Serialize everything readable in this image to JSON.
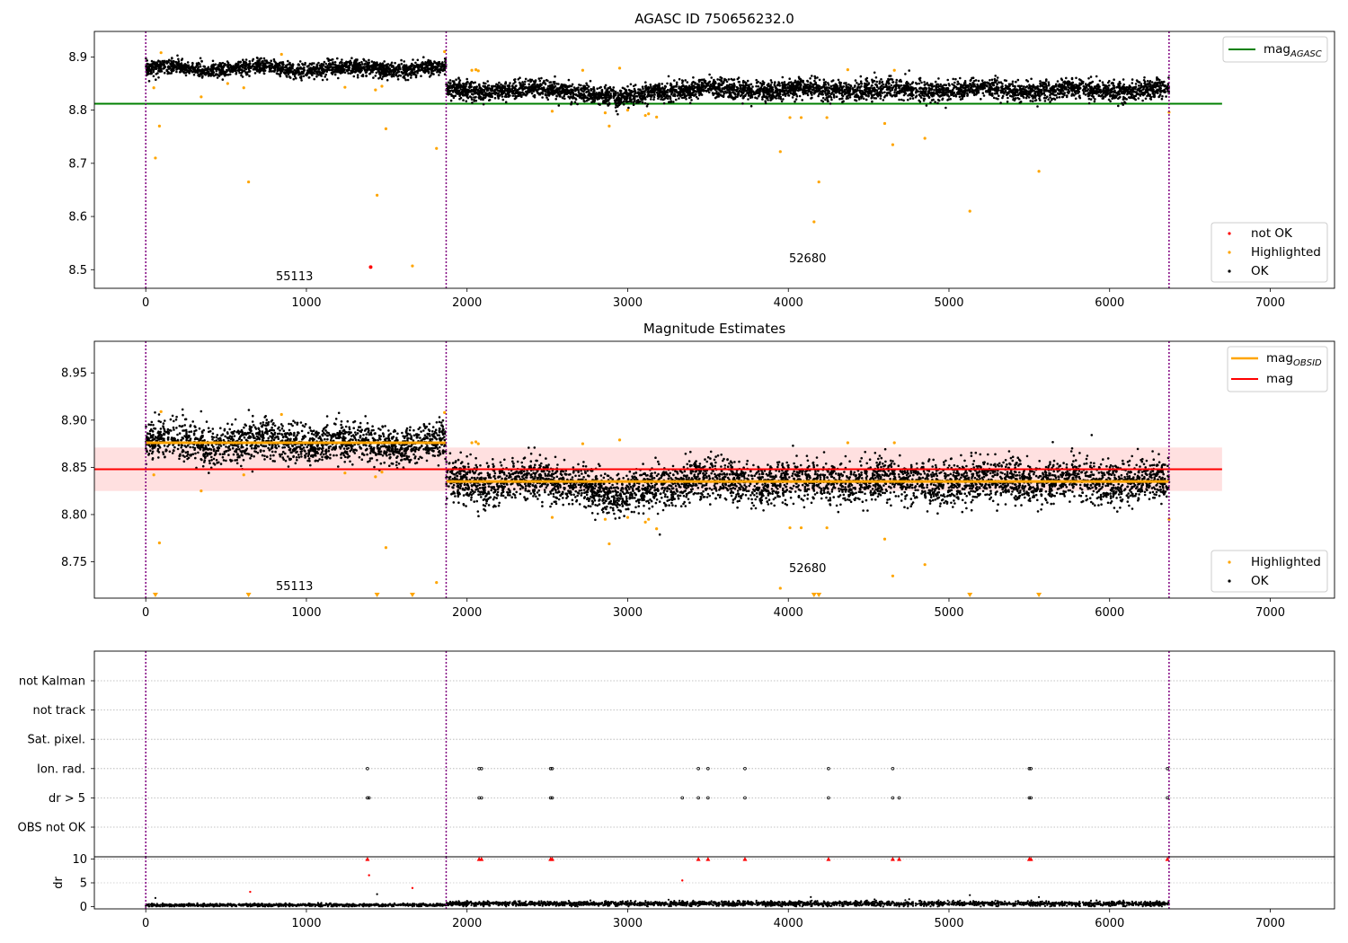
{
  "chart_data": [
    {
      "type": "scatter",
      "title": "AGASC ID 750656232.0",
      "xlim": [
        -320,
        7400
      ],
      "ylim": [
        8.465,
        8.948
      ],
      "x_ticks": [
        0,
        1000,
        2000,
        3000,
        4000,
        5000,
        6000,
        7000
      ],
      "y_ticks": [
        8.5,
        8.6,
        8.7,
        8.8,
        8.9
      ],
      "obs_boundaries": [
        0,
        1870,
        6370
      ],
      "annotations": [
        {
          "text": "55113",
          "x": 930,
          "y": 8.483
        },
        {
          "text": "52680",
          "x": 4120,
          "y": 8.518
        }
      ],
      "lines": [
        {
          "name": "mag_AGASC",
          "color": "#008000",
          "y": 8.812,
          "x_range": [
            -320,
            6700
          ]
        }
      ],
      "series": [
        {
          "name": "OK",
          "color": "#000000",
          "segments": [
            {
              "x_range": [
                0,
                1870
              ],
              "points": 1700,
              "mean": 8.878,
              "std": 0.007
            },
            {
              "x_range": [
                1870,
                6370
              ],
              "points": 4200,
              "mean": 8.838,
              "std": 0.009
            }
          ],
          "dips": [
            [
              2700,
              3200,
              -0.02
            ]
          ]
        },
        {
          "name": "Highlighted",
          "color": "#ffa500",
          "points": [
            [
              50,
              8.842
            ],
            [
              60,
              8.71
            ],
            [
              85,
              8.77
            ],
            [
              95,
              8.908
            ],
            [
              345,
              8.825
            ],
            [
              510,
              8.85
            ],
            [
              610,
              8.842
            ],
            [
              640,
              8.665
            ],
            [
              845,
              8.905
            ],
            [
              1240,
              8.843
            ],
            [
              1430,
              8.838
            ],
            [
              1440,
              8.64
            ],
            [
              1470,
              8.845
            ],
            [
              1495,
              8.765
            ],
            [
              1660,
              8.507
            ],
            [
              1810,
              8.728
            ],
            [
              1860,
              8.91
            ],
            [
              2030,
              8.875
            ],
            [
              2055,
              8.876
            ],
            [
              2070,
              8.874
            ],
            [
              2530,
              8.798
            ],
            [
              2720,
              8.875
            ],
            [
              2860,
              8.795
            ],
            [
              2885,
              8.77
            ],
            [
              2950,
              8.879
            ],
            [
              3000,
              8.8
            ],
            [
              3110,
              8.79
            ],
            [
              3130,
              8.793
            ],
            [
              3180,
              8.787
            ],
            [
              3950,
              8.722
            ],
            [
              4010,
              8.786
            ],
            [
              4080,
              8.786
            ],
            [
              4160,
              8.59
            ],
            [
              4190,
              8.665
            ],
            [
              4240,
              8.786
            ],
            [
              4370,
              8.876
            ],
            [
              4600,
              8.775
            ],
            [
              4650,
              8.735
            ],
            [
              4660,
              8.875
            ],
            [
              4850,
              8.747
            ],
            [
              5130,
              8.61
            ],
            [
              5560,
              8.685
            ],
            [
              6370,
              8.796
            ]
          ]
        },
        {
          "name": "not OK",
          "color": "#ff0000",
          "points": [
            [
              1400,
              8.505
            ]
          ]
        }
      ],
      "legends": [
        {
          "position": "top-right",
          "entries": [
            "mag_AGASC"
          ]
        },
        {
          "position": "lower-right",
          "entries": [
            "not OK",
            "Highlighted",
            "OK"
          ]
        }
      ]
    },
    {
      "type": "scatter",
      "title": "Magnitude Estimates",
      "xlim": [
        -320,
        7400
      ],
      "ylim": [
        8.7115,
        8.9835
      ],
      "x_ticks": [
        0,
        1000,
        2000,
        3000,
        4000,
        5000,
        6000,
        7000
      ],
      "y_ticks": [
        8.75,
        8.8,
        8.85,
        8.9,
        8.95
      ],
      "obs_boundaries": [
        0,
        1870,
        6370
      ],
      "annotations": [
        {
          "text": "55113",
          "x": 930,
          "y": 8.7215
        },
        {
          "text": "52680",
          "x": 4120,
          "y": 8.7425
        }
      ],
      "lines": [
        {
          "name": "mag_OBSID",
          "color": "#ffa500",
          "segments": [
            {
              "x_range": [
                0,
                1870
              ],
              "y": 8.876
            },
            {
              "x_range": [
                1870,
                6370
              ],
              "y": 8.835
            }
          ]
        },
        {
          "name": "mag",
          "color": "#ff0000",
          "y": 8.848,
          "x_range": [
            -320,
            6700
          ],
          "band": {
            "low": 8.825,
            "high": 8.871,
            "color": "#ffcccc"
          }
        }
      ],
      "series": [
        {
          "name": "OK",
          "color": "#000000",
          "segments": [
            {
              "x_range": [
                0,
                1870
              ],
              "points": 1700,
              "mean": 8.876,
              "std": 0.01
            },
            {
              "x_range": [
                1870,
                6370
              ],
              "points": 4200,
              "mean": 8.835,
              "std": 0.011
            }
          ],
          "dips": [
            [
              2700,
              3200,
              -0.02
            ]
          ]
        },
        {
          "name": "Highlighted",
          "color": "#ffa500",
          "points": [
            [
              50,
              8.842
            ],
            [
              85,
              8.77
            ],
            [
              95,
              8.909
            ],
            [
              345,
              8.825
            ],
            [
              610,
              8.842
            ],
            [
              845,
              8.906
            ],
            [
              1240,
              8.844
            ],
            [
              1430,
              8.84
            ],
            [
              1470,
              8.845
            ],
            [
              1495,
              8.765
            ],
            [
              1810,
              8.728
            ],
            [
              1860,
              8.908
            ],
            [
              2030,
              8.876
            ],
            [
              2055,
              8.877
            ],
            [
              2070,
              8.875
            ],
            [
              2530,
              8.797
            ],
            [
              2720,
              8.875
            ],
            [
              2860,
              8.795
            ],
            [
              2885,
              8.769
            ],
            [
              2950,
              8.879
            ],
            [
              3000,
              8.797
            ],
            [
              3110,
              8.792
            ],
            [
              3130,
              8.795
            ],
            [
              3180,
              8.785
            ],
            [
              3950,
              8.722
            ],
            [
              4010,
              8.786
            ],
            [
              4080,
              8.786
            ],
            [
              4240,
              8.786
            ],
            [
              4370,
              8.876
            ],
            [
              4600,
              8.774
            ],
            [
              4650,
              8.735
            ],
            [
              4660,
              8.876
            ],
            [
              4850,
              8.747
            ],
            [
              6370,
              8.795
            ]
          ]
        },
        {
          "name": "Highlighted (off-axis)",
          "color": "#ffa500",
          "marker": "triangle-down",
          "x": [
            60,
            640,
            1440,
            1660,
            4160,
            4190,
            5130,
            5560
          ]
        }
      ],
      "legends": [
        {
          "position": "top-right",
          "entries": [
            "mag_OBSID",
            "mag"
          ]
        },
        {
          "position": "lower-right",
          "entries": [
            "Highlighted",
            "OK"
          ]
        }
      ]
    },
    {
      "type": "scatter",
      "xlim": [
        -320,
        7400
      ],
      "category_axis": [
        "not Kalman",
        "not track",
        "Sat. pixel.",
        "Ion. rad.",
        "dr > 5",
        "OBS not OK"
      ],
      "flag_points": {
        "Ion. rad.": [
          1380,
          2075,
          2090,
          2520,
          2530,
          3440,
          3500,
          3730,
          4250,
          4650,
          5500,
          5510,
          6360
        ],
        "dr > 5": [
          1380,
          1390,
          2075,
          2090,
          2520,
          2530,
          3340,
          3440,
          3500,
          3730,
          4250,
          4650,
          4690,
          5500,
          5510,
          6360
        ]
      },
      "obs_boundaries": [
        0,
        1870,
        6370
      ]
    },
    {
      "type": "scatter",
      "ylabel": "dr",
      "xlim": [
        -320,
        7400
      ],
      "ylim": [
        -0.5,
        10.5
      ],
      "x_ticks": [
        0,
        1000,
        2000,
        3000,
        4000,
        5000,
        6000,
        7000
      ],
      "y_ticks": [
        0,
        5,
        10
      ],
      "series": [
        {
          "name": "dr",
          "color": "#000000",
          "segments": [
            {
              "x_range": [
                0,
                1870
              ],
              "points": 1000,
              "mean": 0.3,
              "std": 0.15
            },
            {
              "x_range": [
                1870,
                6370
              ],
              "points": 2500,
              "mean": 0.6,
              "std": 0.25
            }
          ]
        },
        {
          "name": "dr clipped",
          "color": "#ff0000",
          "marker": "triangle-up",
          "x": [
            1380,
            2075,
            2090,
            2520,
            2530,
            3440,
            3500,
            3730,
            4250,
            4650,
            4690,
            5500,
            5510,
            6360
          ],
          "y": 10
        },
        {
          "name": "dr > 5",
          "color": "#ff0000",
          "points": [
            [
              650,
              3.1
            ],
            [
              1390,
              6.6
            ],
            [
              1660,
              3.9
            ],
            [
              3340,
              5.5
            ]
          ]
        },
        {
          "name": "dr outliers",
          "color": "#000000",
          "points": [
            [
              60,
              1.8
            ],
            [
              1440,
              2.6
            ],
            [
              4140,
              2.0
            ],
            [
              5130,
              2.4
            ],
            [
              5560,
              2.0
            ]
          ]
        }
      ],
      "obs_boundaries": [
        0,
        1870,
        6370
      ]
    }
  ]
}
